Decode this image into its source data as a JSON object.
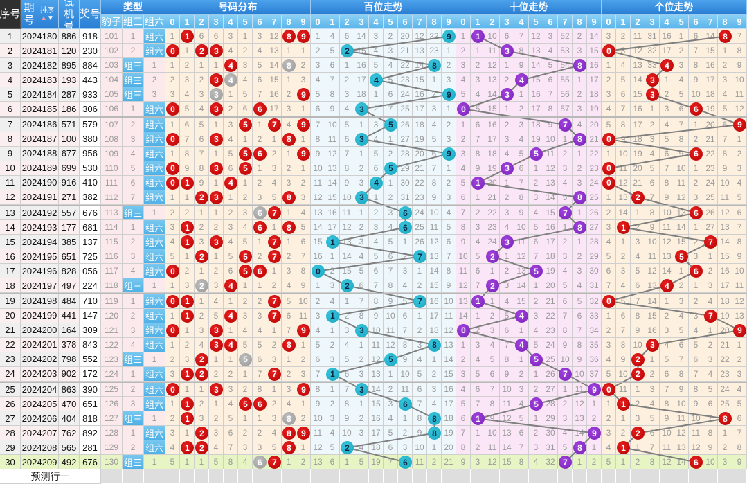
{
  "header": {
    "seq": "序号",
    "period": "期号",
    "sort_label": "排序",
    "trial": "试机号",
    "prize": "奖号",
    "predict_row": "预测行一"
  },
  "digit_labels": [
    "0",
    "1",
    "2",
    "3",
    "4",
    "5",
    "6",
    "7",
    "8",
    "9"
  ],
  "colors": {
    "header_blue": "#2a7fd4",
    "subheader_blue": "#5ab4ea",
    "ball_red": "#cc0000",
    "ball_gray": "#a8a8a8",
    "ball_cyan": "#1fb4cf",
    "ball_purple": "#8a2bc4",
    "last_row": "#e6f5c3"
  },
  "rows": [
    {
      "seq": "1",
      "period": "2024180",
      "trial": "886",
      "prize": "918",
      "repeat": null
    },
    {
      "seq": "2",
      "period": "2024181",
      "trial": "120",
      "prize": "230",
      "repeat": null
    },
    {
      "seq": "3",
      "period": "2024182",
      "trial": "895",
      "prize": "884",
      "repeat": 8
    },
    {
      "seq": "4",
      "period": "2024183",
      "trial": "193",
      "prize": "443",
      "repeat": 4
    },
    {
      "seq": "5",
      "period": "2024184",
      "trial": "287",
      "prize": "933",
      "repeat": 3
    },
    {
      "seq": "6",
      "period": "2024185",
      "trial": "186",
      "prize": "306",
      "repeat": null
    },
    {
      "seq": "7",
      "period": "2024186",
      "trial": "571",
      "prize": "579",
      "repeat": null
    },
    {
      "seq": "8",
      "period": "2024187",
      "trial": "100",
      "prize": "380",
      "repeat": null
    },
    {
      "seq": "9",
      "period": "2024188",
      "trial": "677",
      "prize": "956",
      "repeat": null
    },
    {
      "seq": "10",
      "period": "2024189",
      "trial": "699",
      "prize": "530",
      "repeat": null
    },
    {
      "seq": "11",
      "period": "2024190",
      "trial": "916",
      "prize": "410",
      "repeat": null
    },
    {
      "seq": "12",
      "period": "2024191",
      "trial": "271",
      "prize": "382",
      "repeat": null
    },
    {
      "seq": "13",
      "period": "2024192",
      "trial": "557",
      "prize": "676",
      "repeat": 6
    },
    {
      "seq": "14",
      "period": "2024193",
      "trial": "177",
      "prize": "681",
      "repeat": null
    },
    {
      "seq": "15",
      "period": "2024194",
      "trial": "385",
      "prize": "137",
      "repeat": null
    },
    {
      "seq": "16",
      "period": "2024195",
      "trial": "651",
      "prize": "725",
      "repeat": null
    },
    {
      "seq": "17",
      "period": "2024196",
      "trial": "828",
      "prize": "056",
      "repeat": null
    },
    {
      "seq": "18",
      "period": "2024197",
      "trial": "497",
      "prize": "224",
      "repeat": 2
    },
    {
      "seq": "19",
      "period": "2024198",
      "trial": "484",
      "prize": "710",
      "repeat": null
    },
    {
      "seq": "20",
      "period": "2024199",
      "trial": "441",
      "prize": "147",
      "repeat": null
    },
    {
      "seq": "21",
      "period": "2024200",
      "trial": "164",
      "prize": "309",
      "repeat": null
    },
    {
      "seq": "22",
      "period": "2024201",
      "trial": "378",
      "prize": "843",
      "repeat": null
    },
    {
      "seq": "23",
      "period": "2024202",
      "trial": "798",
      "prize": "552",
      "repeat": 5
    },
    {
      "seq": "24",
      "period": "2024203",
      "trial": "902",
      "prize": "172",
      "repeat": null
    },
    {
      "seq": "25",
      "period": "2024204",
      "trial": "863",
      "prize": "390",
      "repeat": null
    },
    {
      "seq": "26",
      "period": "2024205",
      "trial": "470",
      "prize": "651",
      "repeat": null
    },
    {
      "seq": "27",
      "period": "2024206",
      "trial": "404",
      "prize": "818",
      "repeat": 8
    },
    {
      "seq": "28",
      "period": "2024207",
      "trial": "762",
      "prize": "892",
      "repeat": null
    },
    {
      "seq": "29",
      "period": "2024208",
      "trial": "565",
      "prize": "281",
      "repeat": null
    },
    {
      "seq": "30",
      "period": "2024209",
      "trial": "492",
      "prize": "676",
      "repeat": 6
    }
  ],
  "type": {
    "title": "类型",
    "labels": [
      "豹子",
      "组三",
      "组六"
    ],
    "baozi": [
      101,
      102,
      103,
      104,
      105,
      106,
      107,
      108,
      109,
      110,
      111,
      112,
      113,
      114,
      115,
      116,
      117,
      118,
      119,
      120,
      121,
      122,
      123,
      124,
      125,
      126,
      127,
      128,
      129,
      130
    ],
    "zusan": [
      1,
      2,
      0,
      0,
      0,
      1,
      2,
      3,
      4,
      5,
      6,
      7,
      0,
      1,
      2,
      3,
      4,
      0,
      1,
      2,
      3,
      4,
      0,
      1,
      2,
      3,
      0,
      1,
      2,
      0
    ],
    "zuliu": [
      0,
      0,
      1,
      2,
      3,
      0,
      0,
      0,
      0,
      0,
      0,
      0,
      1,
      0,
      0,
      0,
      0,
      1,
      0,
      0,
      0,
      0,
      1,
      0,
      0,
      0,
      1,
      0,
      0,
      1
    ]
  },
  "distribution": {
    "title": "号码分布",
    "omission_by_digit": [
      [
        1,
        0,
        1,
        2,
        3,
        0,
        1,
        0,
        1,
        0,
        0,
        1,
        2,
        3,
        4,
        5,
        0,
        1,
        0,
        1,
        0,
        1,
        2,
        3,
        0,
        1,
        2,
        3,
        4,
        5
      ],
      [
        0,
        1,
        2,
        3,
        4,
        5,
        6,
        7,
        8,
        9,
        0,
        1,
        2,
        0,
        0,
        1,
        2,
        3,
        0,
        0,
        1,
        2,
        3,
        0,
        1,
        0,
        0,
        1,
        0,
        1
      ],
      [
        6,
        0,
        1,
        2,
        3,
        4,
        5,
        6,
        7,
        8,
        9,
        0,
        1,
        2,
        3,
        0,
        1,
        0,
        1,
        2,
        3,
        4,
        0,
        0,
        1,
        2,
        3,
        0,
        0,
        1
      ],
      [
        6,
        0,
        1,
        0,
        0,
        0,
        1,
        0,
        1,
        0,
        1,
        0,
        1,
        2,
        0,
        1,
        2,
        3,
        4,
        5,
        0,
        0,
        1,
        2,
        0,
        1,
        2,
        3,
        4,
        5
      ],
      [
        3,
        4,
        0,
        0,
        1,
        2,
        3,
        4,
        5,
        6,
        0,
        1,
        2,
        3,
        4,
        5,
        6,
        0,
        1,
        0,
        1,
        0,
        1,
        2,
        3,
        4,
        5,
        6,
        7,
        8
      ],
      [
        1,
        2,
        3,
        4,
        5,
        6,
        0,
        1,
        0,
        0,
        1,
        2,
        3,
        4,
        5,
        0,
        0,
        1,
        2,
        3,
        4,
        5,
        0,
        1,
        2,
        0,
        1,
        2,
        3,
        4
      ],
      [
        3,
        4,
        5,
        6,
        7,
        0,
        1,
        2,
        0,
        1,
        2,
        3,
        0,
        0,
        1,
        2,
        0,
        1,
        2,
        3,
        4,
        5,
        6,
        7,
        8,
        0,
        1,
        2,
        3,
        0
      ],
      [
        12,
        13,
        14,
        15,
        16,
        17,
        0,
        1,
        2,
        3,
        4,
        5,
        0,
        1,
        0,
        0,
        1,
        2,
        0,
        0,
        1,
        2,
        3,
        0,
        1,
        2,
        3,
        4,
        5,
        0
      ],
      [
        0,
        1,
        0,
        1,
        2,
        3,
        4,
        0,
        1,
        2,
        3,
        0,
        1,
        0,
        1,
        2,
        3,
        4,
        5,
        6,
        7,
        0,
        1,
        2,
        3,
        4,
        0,
        0,
        0,
        1
      ],
      [
        0,
        1,
        2,
        3,
        0,
        1,
        0,
        1,
        0,
        1,
        2,
        3,
        4,
        5,
        6,
        7,
        8,
        9,
        10,
        11,
        0,
        1,
        2,
        3,
        0,
        1,
        2,
        0,
        1,
        2
      ]
    ]
  },
  "hundreds_trend": {
    "title": "百位走势",
    "omission_by_digit": [
      [
        1,
        2,
        3,
        4,
        5,
        6,
        7,
        8,
        9,
        10,
        11,
        12,
        13,
        14,
        15,
        16,
        0,
        1,
        2,
        3,
        4,
        5,
        6,
        7,
        8,
        9,
        10,
        11,
        12,
        13
      ],
      [
        4,
        5,
        6,
        7,
        8,
        9,
        10,
        11,
        12,
        13,
        14,
        15,
        16,
        17,
        0,
        1,
        2,
        3,
        4,
        0,
        1,
        2,
        3,
        0,
        1,
        2,
        3,
        4,
        5,
        6
      ],
      [
        6,
        0,
        1,
        2,
        3,
        4,
        5,
        6,
        7,
        8,
        9,
        10,
        11,
        12,
        13,
        14,
        15,
        0,
        1,
        2,
        3,
        4,
        5,
        6,
        7,
        8,
        9,
        10,
        0,
        1
      ],
      [
        14,
        15,
        16,
        17,
        18,
        0,
        1,
        0,
        1,
        2,
        3,
        0,
        1,
        2,
        3,
        4,
        5,
        6,
        7,
        8,
        0,
        1,
        2,
        3,
        0,
        1,
        2,
        3,
        4,
        5
      ],
      [
        3,
        4,
        5,
        0,
        1,
        2,
        3,
        4,
        5,
        6,
        0,
        1,
        2,
        3,
        4,
        5,
        6,
        7,
        8,
        9,
        10,
        11,
        12,
        13,
        14,
        15,
        16,
        17,
        18,
        19
      ],
      [
        2,
        3,
        4,
        5,
        6,
        7,
        0,
        1,
        2,
        0,
        1,
        2,
        3,
        4,
        5,
        6,
        7,
        8,
        9,
        10,
        11,
        12,
        0,
        1,
        2,
        3,
        4,
        5,
        6,
        7
      ],
      [
        20,
        21,
        22,
        23,
        24,
        25,
        26,
        27,
        28,
        29,
        30,
        31,
        0,
        0,
        1,
        2,
        3,
        4,
        5,
        6,
        7,
        8,
        9,
        10,
        11,
        0,
        1,
        2,
        3,
        0
      ],
      [
        12,
        13,
        14,
        15,
        16,
        17,
        18,
        19,
        20,
        21,
        22,
        23,
        24,
        25,
        26,
        0,
        1,
        2,
        0,
        1,
        2,
        3,
        4,
        5,
        6,
        7,
        8,
        9,
        10,
        11
      ],
      [
        22,
        23,
        0,
        1,
        2,
        3,
        4,
        5,
        6,
        7,
        8,
        9,
        10,
        11,
        12,
        13,
        14,
        15,
        16,
        17,
        18,
        0,
        1,
        2,
        3,
        4,
        0,
        0,
        1,
        2
      ],
      [
        0,
        1,
        2,
        3,
        0,
        1,
        2,
        3,
        0,
        1,
        2,
        3,
        4,
        5,
        6,
        7,
        8,
        9,
        10,
        11,
        12,
        13,
        14,
        15,
        16,
        17,
        18,
        19,
        20,
        21
      ]
    ]
  },
  "tens_trend": {
    "title": "十位走势",
    "omission_by_digit": [
      [
        1,
        2,
        3,
        4,
        5,
        0,
        1,
        2,
        3,
        4,
        5,
        6,
        7,
        8,
        9,
        10,
        11,
        12,
        13,
        14,
        0,
        1,
        2,
        3,
        4,
        5,
        6,
        7,
        8,
        9
      ],
      [
        0,
        1,
        2,
        3,
        4,
        5,
        6,
        7,
        8,
        9,
        0,
        1,
        2,
        3,
        4,
        5,
        6,
        7,
        0,
        1,
        2,
        3,
        4,
        5,
        6,
        7,
        0,
        1,
        2,
        3
      ],
      [
        10,
        11,
        12,
        13,
        14,
        15,
        16,
        17,
        18,
        19,
        20,
        21,
        22,
        23,
        24,
        0,
        1,
        0,
        1,
        2,
        3,
        4,
        5,
        6,
        7,
        8,
        9,
        10,
        11,
        12
      ],
      [
        6,
        0,
        1,
        2,
        0,
        1,
        2,
        3,
        4,
        0,
        1,
        2,
        3,
        4,
        0,
        1,
        2,
        3,
        4,
        5,
        6,
        7,
        8,
        9,
        10,
        11,
        12,
        13,
        14,
        15
      ],
      [
        7,
        8,
        9,
        0,
        1,
        2,
        3,
        4,
        5,
        6,
        7,
        8,
        9,
        10,
        11,
        12,
        13,
        14,
        15,
        0,
        1,
        0,
        1,
        2,
        3,
        4,
        5,
        6,
        7,
        8
      ],
      [
        12,
        13,
        14,
        15,
        16,
        17,
        18,
        19,
        0,
        1,
        2,
        3,
        4,
        5,
        6,
        7,
        0,
        1,
        2,
        3,
        4,
        5,
        0,
        1,
        2,
        0,
        1,
        2,
        3,
        4
      ],
      [
        3,
        4,
        5,
        6,
        7,
        8,
        9,
        10,
        11,
        12,
        13,
        14,
        15,
        16,
        17,
        18,
        19,
        20,
        21,
        22,
        23,
        24,
        25,
        26,
        27,
        28,
        29,
        30,
        31,
        32
      ],
      [
        52,
        53,
        54,
        55,
        56,
        57,
        0,
        1,
        2,
        3,
        4,
        5,
        0,
        1,
        2,
        3,
        4,
        5,
        6,
        7,
        8,
        9,
        10,
        0,
        1,
        2,
        3,
        4,
        5,
        0
      ],
      [
        2,
        3,
        0,
        1,
        2,
        3,
        4,
        0,
        1,
        2,
        3,
        0,
        1,
        0,
        1,
        2,
        3,
        4,
        5,
        6,
        7,
        8,
        9,
        10,
        11,
        12,
        13,
        14,
        0,
        1
      ],
      [
        14,
        15,
        16,
        17,
        18,
        19,
        20,
        21,
        22,
        23,
        24,
        25,
        26,
        27,
        28,
        29,
        30,
        31,
        32,
        33,
        34,
        35,
        36,
        37,
        0,
        1,
        2,
        0,
        1,
        2
      ]
    ]
  },
  "units_trend": {
    "title": "个位走势",
    "omission_by_digit": [
      [
        3,
        0,
        1,
        2,
        3,
        4,
        5,
        0,
        1,
        0,
        0,
        1,
        2,
        3,
        4,
        5,
        6,
        7,
        0,
        1,
        2,
        3,
        4,
        5,
        0,
        1,
        2,
        3,
        4,
        5
      ],
      [
        2,
        3,
        4,
        5,
        6,
        7,
        8,
        9,
        10,
        11,
        12,
        13,
        14,
        0,
        1,
        2,
        3,
        4,
        5,
        6,
        7,
        8,
        9,
        10,
        11,
        0,
        1,
        2,
        0,
        1
      ],
      [
        11,
        12,
        13,
        14,
        15,
        16,
        17,
        18,
        19,
        20,
        21,
        0,
        1,
        2,
        3,
        4,
        5,
        6,
        7,
        8,
        9,
        10,
        0,
        0,
        1,
        2,
        3,
        0,
        1,
        2
      ],
      [
        31,
        32,
        33,
        0,
        0,
        1,
        2,
        3,
        4,
        5,
        6,
        7,
        8,
        9,
        10,
        11,
        12,
        13,
        14,
        15,
        16,
        0,
        1,
        2,
        3,
        4,
        5,
        6,
        7,
        8
      ],
      [
        16,
        17,
        0,
        1,
        2,
        3,
        4,
        5,
        6,
        7,
        8,
        9,
        10,
        11,
        12,
        13,
        14,
        0,
        1,
        2,
        3,
        4,
        5,
        6,
        7,
        8,
        9,
        10,
        11,
        12
      ],
      [
        1,
        2,
        3,
        4,
        5,
        6,
        7,
        8,
        9,
        10,
        11,
        12,
        13,
        14,
        15,
        0,
        1,
        2,
        3,
        4,
        5,
        6,
        7,
        8,
        9,
        10,
        11,
        12,
        13,
        14
      ],
      [
        6,
        7,
        8,
        9,
        10,
        0,
        1,
        2,
        0,
        1,
        2,
        3,
        0,
        1,
        2,
        3,
        0,
        1,
        2,
        3,
        4,
        5,
        6,
        7,
        8,
        9,
        10,
        11,
        12,
        0
      ],
      [
        14,
        15,
        16,
        17,
        18,
        19,
        20,
        21,
        22,
        23,
        24,
        25,
        26,
        27,
        0,
        1,
        2,
        3,
        4,
        0,
        1,
        2,
        3,
        4,
        5,
        6,
        7,
        8,
        9,
        10
      ],
      [
        0,
        1,
        2,
        3,
        4,
        5,
        6,
        7,
        8,
        9,
        10,
        11,
        12,
        13,
        14,
        15,
        16,
        17,
        18,
        19,
        20,
        21,
        22,
        23,
        24,
        25,
        0,
        1,
        2,
        3
      ],
      [
        7,
        8,
        9,
        10,
        11,
        12,
        0,
        1,
        2,
        3,
        4,
        5,
        6,
        7,
        8,
        9,
        10,
        11,
        12,
        13,
        0,
        1,
        2,
        3,
        4,
        5,
        6,
        7,
        8,
        9
      ]
    ]
  }
}
